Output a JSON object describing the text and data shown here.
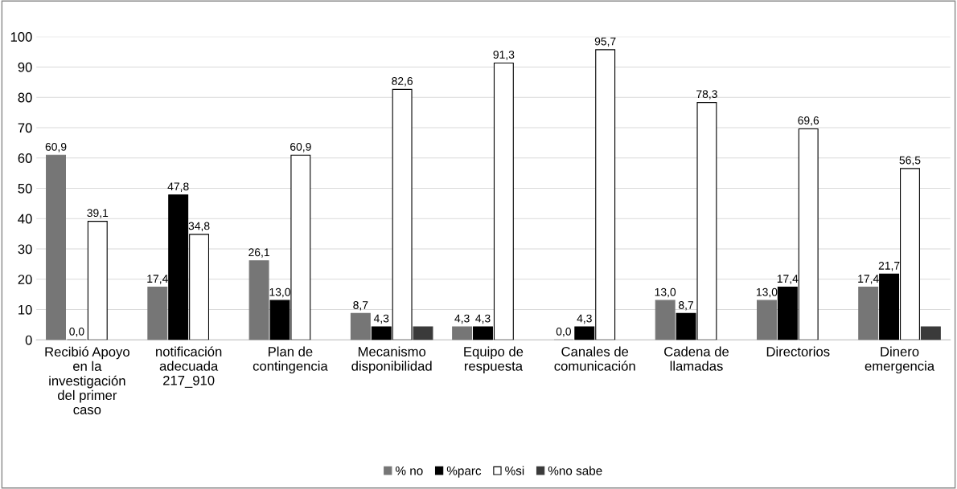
{
  "chart_data": {
    "type": "bar",
    "categories": [
      "Recibió Apoyo en la investigación del primer caso",
      "notificación adecuada 217_910",
      "Plan de contingencia",
      "Mecanismo disponibilidad",
      "Equipo de respuesta",
      "Canales de comunicación",
      "Cadena de llamadas",
      "Directorios",
      "Dinero emergencia"
    ],
    "series": [
      {
        "name": "% no",
        "color": "#767676",
        "values": [
          60.9,
          17.4,
          26.1,
          8.7,
          4.3,
          0.0,
          13.0,
          13.0,
          17.4
        ],
        "value_labels": [
          "60,9",
          "17,4",
          "26,1",
          "8,7",
          "4,3",
          "0,0",
          "13,0",
          "13,0",
          "17,4"
        ]
      },
      {
        "name": "%parc",
        "color": "#000000",
        "values": [
          0.0,
          47.8,
          13.0,
          4.3,
          4.3,
          4.3,
          8.7,
          17.4,
          21.7
        ],
        "value_labels": [
          "0,0",
          "47,8",
          "13,0",
          "4,3",
          "4,3",
          "4,3",
          "8,7",
          "17,4",
          "21,7"
        ]
      },
      {
        "name": "%si",
        "color": "#ffffff",
        "values": [
          39.1,
          34.8,
          60.9,
          82.6,
          91.3,
          95.7,
          78.3,
          69.6,
          56.5
        ],
        "value_labels": [
          "39,1",
          "34,8",
          "60,9",
          "82,6",
          "91,3",
          "95,7",
          "78,3",
          "69,6",
          "56,5"
        ]
      },
      {
        "name": "%no sabe",
        "color": "#3a3a3a",
        "values": [
          null,
          null,
          null,
          4.3,
          null,
          null,
          null,
          null,
          4.3
        ],
        "value_labels": [
          null,
          null,
          null,
          null,
          null,
          null,
          null,
          null,
          null
        ]
      }
    ],
    "ylim": [
      0,
      100
    ],
    "yticks": [
      0,
      10,
      20,
      30,
      40,
      50,
      60,
      70,
      80,
      90,
      100
    ],
    "grid": "y",
    "legend": "bottom"
  }
}
